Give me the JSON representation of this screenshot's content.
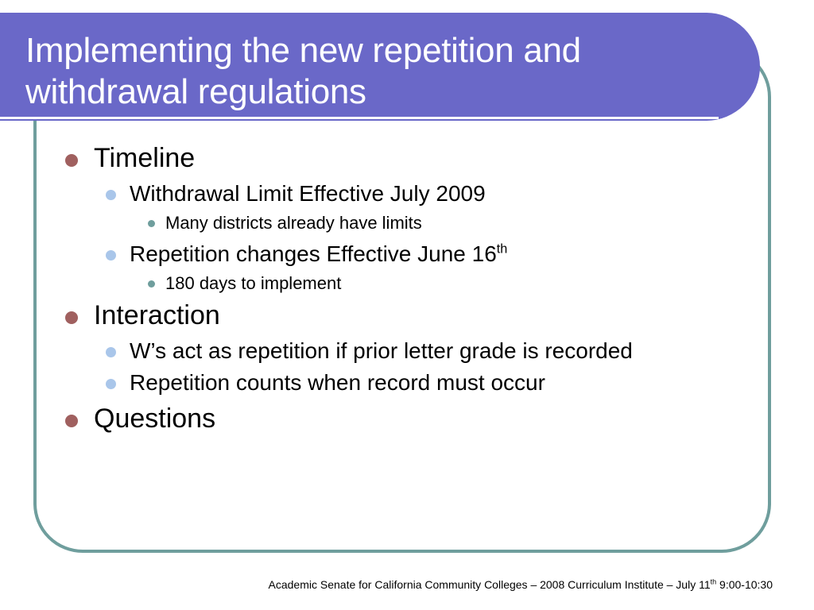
{
  "title": {
    "line1": "Implementing the new repetition and",
    "line2": "withdrawal regulations"
  },
  "bullets": [
    {
      "level": 1,
      "text": "Timeline"
    },
    {
      "level": 2,
      "text": "Withdrawal Limit Effective July 2009"
    },
    {
      "level": 3,
      "text": "Many districts already have limits"
    },
    {
      "level": 2,
      "text": "Repetition changes Effective June 16",
      "superscript": "th"
    },
    {
      "level": 3,
      "text": "180 days to implement"
    },
    {
      "level": 1,
      "text": "Interaction"
    },
    {
      "level": 2,
      "text": "W’s act as repetition if prior letter grade is recorded"
    },
    {
      "level": 2,
      "text": "Repetition counts when record must occur"
    },
    {
      "level": 1,
      "text": "Questions"
    }
  ],
  "footer": {
    "text": "Academic Senate for California Community Colleges – 2008 Curriculum Institute – July 11",
    "superscript": "th",
    "suffix": " 9:00-10:30"
  },
  "colors": {
    "title_bar": "#6a68c8",
    "frame_border": "#6f9e9d",
    "bullet_level1": "#a0605f",
    "bullet_level2": "#a9c6ea",
    "bullet_level3": "#6f9e9d"
  }
}
